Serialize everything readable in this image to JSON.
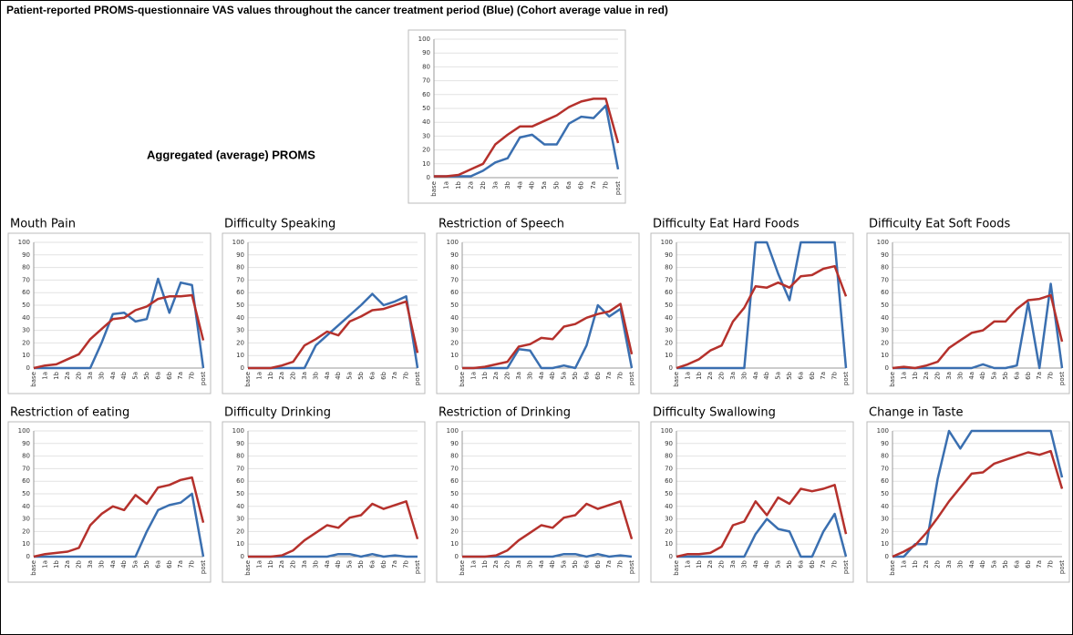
{
  "title": "Patient-reported PROMS-questionnaire VAS values throughout the cancer treatment period (Blue) (Cohort average value in red)",
  "chart_data": [
    {
      "type": "line",
      "title": "Aggregated (average) PROMS",
      "categories": [
        "base",
        "1a",
        "1b",
        "2a",
        "2b",
        "3a",
        "3b",
        "4a",
        "4b",
        "5a",
        "5b",
        "6a",
        "6b",
        "7a",
        "7b",
        "post"
      ],
      "ylim": [
        0,
        100
      ],
      "yticks": [
        0,
        10,
        20,
        30,
        40,
        50,
        60,
        70,
        80,
        90,
        100
      ],
      "series": [
        {
          "color": "#3a6fb0",
          "values": [
            1,
            1,
            1,
            1,
            5,
            11,
            14,
            29,
            31,
            24,
            24,
            39,
            44,
            43,
            52,
            6
          ]
        },
        {
          "color": "#b5312c",
          "values": [
            1,
            1,
            2,
            6,
            10,
            24,
            31,
            37,
            37,
            41,
            45,
            51,
            55,
            57,
            57,
            25
          ]
        }
      ]
    },
    {
      "type": "line",
      "title": "Mouth Pain",
      "categories": [
        "base",
        "1a",
        "1b",
        "2a",
        "2b",
        "3a",
        "3b",
        "4a",
        "4b",
        "5a",
        "5b",
        "6a",
        "6b",
        "7a",
        "7b",
        "post"
      ],
      "ylim": [
        0,
        100
      ],
      "yticks": [
        0,
        10,
        20,
        30,
        40,
        50,
        60,
        70,
        80,
        90,
        100
      ],
      "series": [
        {
          "color": "#3a6fb0",
          "values": [
            0,
            0,
            0,
            0,
            0,
            0,
            20,
            43,
            44,
            37,
            39,
            71,
            44,
            68,
            66,
            0
          ]
        },
        {
          "color": "#b5312c",
          "values": [
            0,
            2,
            3,
            7,
            11,
            23,
            31,
            39,
            40,
            46,
            49,
            55,
            57,
            57,
            58,
            22
          ]
        }
      ]
    },
    {
      "type": "line",
      "title": "Difficulty Speaking",
      "categories": [
        "base",
        "1a",
        "1b",
        "2a",
        "2b",
        "3a",
        "3b",
        "4a",
        "4b",
        "5a",
        "5b",
        "6a",
        "6b",
        "7a",
        "7b",
        "post"
      ],
      "ylim": [
        0,
        100
      ],
      "yticks": [
        0,
        10,
        20,
        30,
        40,
        50,
        60,
        70,
        80,
        90,
        100
      ],
      "series": [
        {
          "color": "#3a6fb0",
          "values": [
            0,
            0,
            0,
            0,
            0,
            0,
            18,
            26,
            34,
            42,
            50,
            59,
            50,
            53,
            57,
            0
          ]
        },
        {
          "color": "#b5312c",
          "values": [
            0,
            0,
            0,
            2,
            5,
            18,
            23,
            29,
            26,
            37,
            41,
            46,
            47,
            50,
            53,
            12
          ]
        }
      ]
    },
    {
      "type": "line",
      "title": "Restriction of Speech",
      "categories": [
        "base",
        "1a",
        "1b",
        "2a",
        "2b",
        "3a",
        "3b",
        "4a",
        "4b",
        "5a",
        "5b",
        "6a",
        "6b",
        "7a",
        "7b",
        "post"
      ],
      "ylim": [
        0,
        100
      ],
      "yticks": [
        0,
        10,
        20,
        30,
        40,
        50,
        60,
        70,
        80,
        90,
        100
      ],
      "series": [
        {
          "color": "#3a6fb0",
          "values": [
            0,
            0,
            0,
            0,
            0,
            15,
            14,
            0,
            0,
            2,
            0,
            18,
            50,
            41,
            47,
            0
          ]
        },
        {
          "color": "#b5312c",
          "values": [
            0,
            0,
            1,
            3,
            5,
            17,
            19,
            24,
            23,
            33,
            35,
            40,
            43,
            45,
            51,
            11
          ]
        }
      ]
    },
    {
      "type": "line",
      "title": "Difficulty Eat Hard Foods",
      "categories": [
        "base",
        "1a",
        "1b",
        "2a",
        "2b",
        "3a",
        "3b",
        "4a",
        "4b",
        "5a",
        "5b",
        "6a",
        "6b",
        "7a",
        "7b",
        "post"
      ],
      "ylim": [
        0,
        100
      ],
      "yticks": [
        0,
        10,
        20,
        30,
        40,
        50,
        60,
        70,
        80,
        90,
        100
      ],
      "series": [
        {
          "color": "#3a6fb0",
          "values": [
            0,
            0,
            0,
            0,
            0,
            0,
            0,
            100,
            100,
            75,
            54,
            100,
            100,
            100,
            100,
            0
          ]
        },
        {
          "color": "#b5312c",
          "values": [
            0,
            3,
            7,
            14,
            18,
            37,
            48,
            65,
            64,
            68,
            64,
            73,
            74,
            79,
            81,
            57
          ]
        }
      ]
    },
    {
      "type": "line",
      "title": "Difficulty Eat Soft Foods",
      "categories": [
        "base",
        "1a",
        "1b",
        "2a",
        "2b",
        "3a",
        "3b",
        "4a",
        "4b",
        "5a",
        "5b",
        "6a",
        "6b",
        "7a",
        "7b",
        "post"
      ],
      "ylim": [
        0,
        100
      ],
      "yticks": [
        0,
        10,
        20,
        30,
        40,
        50,
        60,
        70,
        80,
        90,
        100
      ],
      "series": [
        {
          "color": "#3a6fb0",
          "values": [
            0,
            0,
            0,
            0,
            0,
            0,
            0,
            0,
            3,
            0,
            0,
            2,
            52,
            0,
            67,
            0
          ]
        },
        {
          "color": "#b5312c",
          "values": [
            0,
            1,
            0,
            2,
            5,
            16,
            22,
            28,
            30,
            37,
            37,
            47,
            54,
            55,
            58,
            21
          ]
        }
      ]
    },
    {
      "type": "line",
      "title": "Restriction of eating",
      "categories": [
        "base",
        "1a",
        "1b",
        "2a",
        "2b",
        "3a",
        "3b",
        "4a",
        "4b",
        "5a",
        "5b",
        "6a",
        "6b",
        "7a",
        "7b",
        "post"
      ],
      "ylim": [
        0,
        100
      ],
      "yticks": [
        0,
        10,
        20,
        30,
        40,
        50,
        60,
        70,
        80,
        90,
        100
      ],
      "series": [
        {
          "color": "#3a6fb0",
          "values": [
            0,
            0,
            0,
            0,
            0,
            0,
            0,
            0,
            0,
            0,
            20,
            37,
            41,
            43,
            50,
            0
          ]
        },
        {
          "color": "#b5312c",
          "values": [
            0,
            2,
            3,
            4,
            7,
            25,
            34,
            40,
            37,
            49,
            42,
            55,
            57,
            61,
            63,
            27
          ]
        }
      ]
    },
    {
      "type": "line",
      "title": "Difficulty Drinking",
      "categories": [
        "base",
        "1a",
        "1b",
        "2a",
        "2b",
        "3a",
        "3b",
        "4a",
        "4b",
        "5a",
        "5b",
        "6a",
        "6b",
        "7a",
        "7b",
        "post"
      ],
      "ylim": [
        0,
        100
      ],
      "yticks": [
        0,
        10,
        20,
        30,
        40,
        50,
        60,
        70,
        80,
        90,
        100
      ],
      "series": [
        {
          "color": "#3a6fb0",
          "values": [
            0,
            0,
            0,
            0,
            0,
            0,
            0,
            0,
            2,
            2,
            0,
            2,
            0,
            1,
            0,
            0
          ]
        },
        {
          "color": "#b5312c",
          "values": [
            0,
            0,
            0,
            1,
            5,
            13,
            19,
            25,
            23,
            31,
            33,
            42,
            38,
            41,
            44,
            14
          ]
        }
      ]
    },
    {
      "type": "line",
      "title": "Restriction of Drinking",
      "categories": [
        "base",
        "1a",
        "1b",
        "2a",
        "2b",
        "3a",
        "3b",
        "4a",
        "4b",
        "5a",
        "5b",
        "6a",
        "6b",
        "7a",
        "7b",
        "post"
      ],
      "ylim": [
        0,
        100
      ],
      "yticks": [
        0,
        10,
        20,
        30,
        40,
        50,
        60,
        70,
        80,
        90,
        100
      ],
      "series": [
        {
          "color": "#3a6fb0",
          "values": [
            0,
            0,
            0,
            0,
            0,
            0,
            0,
            0,
            0,
            2,
            2,
            0,
            2,
            0,
            1,
            0
          ]
        },
        {
          "color": "#b5312c",
          "values": [
            0,
            0,
            0,
            1,
            5,
            13,
            19,
            25,
            23,
            31,
            33,
            42,
            38,
            41,
            44,
            14
          ]
        }
      ]
    },
    {
      "type": "line",
      "title": "Difficulty Swallowing",
      "categories": [
        "base",
        "1a",
        "1b",
        "2a",
        "2b",
        "3a",
        "3b",
        "4a",
        "4b",
        "5a",
        "5b",
        "6a",
        "6b",
        "7a",
        "7b",
        "post"
      ],
      "ylim": [
        0,
        100
      ],
      "yticks": [
        0,
        10,
        20,
        30,
        40,
        50,
        60,
        70,
        80,
        90,
        100
      ],
      "series": [
        {
          "color": "#3a6fb0",
          "values": [
            0,
            0,
            0,
            0,
            0,
            0,
            0,
            18,
            30,
            22,
            20,
            0,
            0,
            20,
            34,
            0
          ]
        },
        {
          "color": "#b5312c",
          "values": [
            0,
            2,
            2,
            3,
            8,
            25,
            28,
            44,
            33,
            47,
            42,
            54,
            52,
            54,
            57,
            18
          ]
        }
      ]
    },
    {
      "type": "line",
      "title": "Change in Taste",
      "categories": [
        "base",
        "1a",
        "1b",
        "2a",
        "2b",
        "3a",
        "3b",
        "4a",
        "4b",
        "5a",
        "5b",
        "6a",
        "6b",
        "7a",
        "7b",
        "post"
      ],
      "ylim": [
        0,
        100
      ],
      "yticks": [
        0,
        10,
        20,
        30,
        40,
        50,
        60,
        70,
        80,
        90,
        100
      ],
      "series": [
        {
          "color": "#3a6fb0",
          "values": [
            0,
            0,
            10,
            10,
            62,
            100,
            86,
            100,
            100,
            100,
            100,
            100,
            100,
            100,
            100,
            63
          ]
        },
        {
          "color": "#b5312c",
          "values": [
            0,
            4,
            9,
            19,
            31,
            44,
            55,
            66,
            67,
            74,
            77,
            80,
            83,
            81,
            84,
            54
          ]
        }
      ]
    }
  ]
}
